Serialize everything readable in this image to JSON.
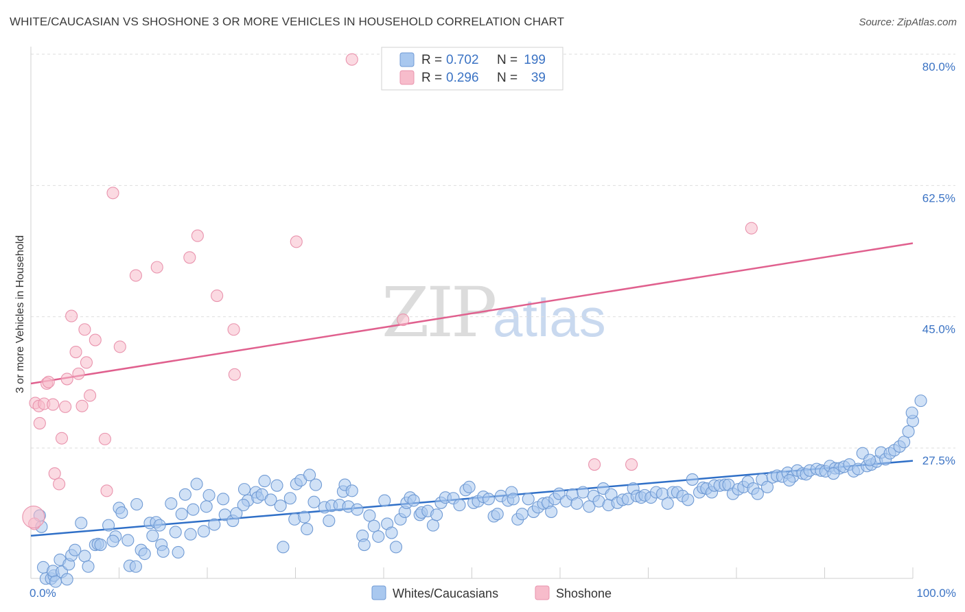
{
  "title": "WHITE/CAUCASIAN VS SHOSHONE 3 OR MORE VEHICLES IN HOUSEHOLD CORRELATION CHART",
  "source": "Source: ZipAtlas.com",
  "watermark": {
    "zip": "ZIP",
    "atlas": "atlas"
  },
  "legend": {
    "r_label": "R =",
    "n_label": "N =",
    "rows": [
      {
        "name": "Whites/Caucasians",
        "r": "0.702",
        "n": "199",
        "color": "#a9c8ef"
      },
      {
        "name": "Shoshone",
        "r": "0.296",
        "n": "39",
        "color": "#f7bccb"
      }
    ]
  },
  "colors": {
    "blue_fill": "#a9c8ef",
    "blue_stroke": "#6f9ad4",
    "blue_line": "#2f6fc7",
    "pink_fill": "#f7bccb",
    "pink_stroke": "#e993ad",
    "pink_line": "#e0608e",
    "tick_text": "#3b73c4"
  },
  "chart_data": {
    "type": "scatter",
    "title": "WHITE/CAUCASIAN VS SHOSHONE 3 OR MORE VEHICLES IN HOUSEHOLD CORRELATION CHART",
    "xlabel": "",
    "ylabel": "3 or more Vehicles in Household",
    "xlim": [
      0,
      100
    ],
    "ylim": [
      10,
      83
    ],
    "x_tick_labels": [
      {
        "value": 0,
        "label": "0.0%"
      },
      {
        "value": 100,
        "label": "100.0%"
      }
    ],
    "y_tick_labels": [
      {
        "value": 27.5,
        "label": "27.5%"
      },
      {
        "value": 45.0,
        "label": "45.0%"
      },
      {
        "value": 62.5,
        "label": "62.5%"
      },
      {
        "value": 80.0,
        "label": "80.0%"
      }
    ],
    "grid": true,
    "series": [
      {
        "name": "Whites/Caucasians",
        "trend": {
          "x": [
            0,
            100
          ],
          "y": [
            15.8,
            25.8
          ]
        },
        "points": [
          [
            1.0,
            18.5
          ],
          [
            1.2,
            17.0
          ],
          [
            1.4,
            11.6
          ],
          [
            1.7,
            10.1
          ],
          [
            2.3,
            10.1
          ],
          [
            2.6,
            10.5
          ],
          [
            2.5,
            11.1
          ],
          [
            2.8,
            9.7
          ],
          [
            3.5,
            11.0
          ],
          [
            3.3,
            12.6
          ],
          [
            4.1,
            10.0
          ],
          [
            4.3,
            12.0
          ],
          [
            4.6,
            13.2
          ],
          [
            5.0,
            13.9
          ],
          [
            5.7,
            17.5
          ],
          [
            6.1,
            13.1
          ],
          [
            6.5,
            11.7
          ],
          [
            7.3,
            14.6
          ],
          [
            7.6,
            14.7
          ],
          [
            7.9,
            14.6
          ],
          [
            8.8,
            17.2
          ],
          [
            9.6,
            15.7
          ],
          [
            9.3,
            15.1
          ],
          [
            10.0,
            19.5
          ],
          [
            10.3,
            18.9
          ],
          [
            11.0,
            15.2
          ],
          [
            11.2,
            11.8
          ],
          [
            11.9,
            11.7
          ],
          [
            12.0,
            20.0
          ],
          [
            12.5,
            13.9
          ],
          [
            12.9,
            13.4
          ],
          [
            13.5,
            17.5
          ],
          [
            13.8,
            15.8
          ],
          [
            14.2,
            17.6
          ],
          [
            14.6,
            17.2
          ],
          [
            14.8,
            14.6
          ],
          [
            15.0,
            13.7
          ],
          [
            15.9,
            20.1
          ],
          [
            16.4,
            16.3
          ],
          [
            16.7,
            13.6
          ],
          [
            17.1,
            18.7
          ],
          [
            17.5,
            21.3
          ],
          [
            18.1,
            16.0
          ],
          [
            18.4,
            19.3
          ],
          [
            18.8,
            22.7
          ],
          [
            19.6,
            16.4
          ],
          [
            19.9,
            19.7
          ],
          [
            20.2,
            21.2
          ],
          [
            20.8,
            17.3
          ],
          [
            21.8,
            20.7
          ],
          [
            22.0,
            18.6
          ],
          [
            22.9,
            17.8
          ],
          [
            23.3,
            18.8
          ],
          [
            24.2,
            22.0
          ],
          [
            24.6,
            20.5
          ],
          [
            24.1,
            19.9
          ],
          [
            25.5,
            21.6
          ],
          [
            25.7,
            20.9
          ],
          [
            26.2,
            21.3
          ],
          [
            26.5,
            23.1
          ],
          [
            27.2,
            20.6
          ],
          [
            27.9,
            22.5
          ],
          [
            28.3,
            19.8
          ],
          [
            28.6,
            14.3
          ],
          [
            29.4,
            20.8
          ],
          [
            29.9,
            18.0
          ],
          [
            30.1,
            22.7
          ],
          [
            30.6,
            23.2
          ],
          [
            31.0,
            18.3
          ],
          [
            31.3,
            16.7
          ],
          [
            31.6,
            23.9
          ],
          [
            32.1,
            20.3
          ],
          [
            32.3,
            22.6
          ],
          [
            33.3,
            19.6
          ],
          [
            33.8,
            17.8
          ],
          [
            34.1,
            19.8
          ],
          [
            35.0,
            19.9
          ],
          [
            35.4,
            21.7
          ],
          [
            35.6,
            22.6
          ],
          [
            36.0,
            19.7
          ],
          [
            36.4,
            21.8
          ],
          [
            37.0,
            19.3
          ],
          [
            37.6,
            15.8
          ],
          [
            37.8,
            14.6
          ],
          [
            38.4,
            18.5
          ],
          [
            38.9,
            17.1
          ],
          [
            39.4,
            15.7
          ],
          [
            40.1,
            20.5
          ],
          [
            40.4,
            17.4
          ],
          [
            40.9,
            16.2
          ],
          [
            41.4,
            14.3
          ],
          [
            41.9,
            18.0
          ],
          [
            42.4,
            19.0
          ],
          [
            42.6,
            20.2
          ],
          [
            43.0,
            20.9
          ],
          [
            43.4,
            20.5
          ],
          [
            44.1,
            18.6
          ],
          [
            44.3,
            18.9
          ],
          [
            45.0,
            19.1
          ],
          [
            45.6,
            17.2
          ],
          [
            46.0,
            18.6
          ],
          [
            46.5,
            20.2
          ],
          [
            47.0,
            20.9
          ],
          [
            47.9,
            20.8
          ],
          [
            48.6,
            19.9
          ],
          [
            49.3,
            21.9
          ],
          [
            49.7,
            22.3
          ],
          [
            50.2,
            20.2
          ],
          [
            50.7,
            20.4
          ],
          [
            51.3,
            21.0
          ],
          [
            51.9,
            20.7
          ],
          [
            52.5,
            18.4
          ],
          [
            52.9,
            18.7
          ],
          [
            53.3,
            21.1
          ],
          [
            54.1,
            20.5
          ],
          [
            54.5,
            21.6
          ],
          [
            54.7,
            20.7
          ],
          [
            55.2,
            18.0
          ],
          [
            55.7,
            18.7
          ],
          [
            56.4,
            20.7
          ],
          [
            57.0,
            19.0
          ],
          [
            57.5,
            19.6
          ],
          [
            58.1,
            20.1
          ],
          [
            58.6,
            20.2
          ],
          [
            59.0,
            19.0
          ],
          [
            59.4,
            20.7
          ],
          [
            59.9,
            21.4
          ],
          [
            60.7,
            20.4
          ],
          [
            61.4,
            21.3
          ],
          [
            61.9,
            20.1
          ],
          [
            62.6,
            21.6
          ],
          [
            63.3,
            19.7
          ],
          [
            63.8,
            21.1
          ],
          [
            64.4,
            20.4
          ],
          [
            64.9,
            22.1
          ],
          [
            65.5,
            19.9
          ],
          [
            65.8,
            21.3
          ],
          [
            66.5,
            20.2
          ],
          [
            67.1,
            20.6
          ],
          [
            67.7,
            20.7
          ],
          [
            68.3,
            22.1
          ],
          [
            68.7,
            21.1
          ],
          [
            69.2,
            20.9
          ],
          [
            69.6,
            21.2
          ],
          [
            70.3,
            20.9
          ],
          [
            70.9,
            21.6
          ],
          [
            71.6,
            21.4
          ],
          [
            72.2,
            20.1
          ],
          [
            72.8,
            21.6
          ],
          [
            73.3,
            21.6
          ],
          [
            73.9,
            21.1
          ],
          [
            74.5,
            20.6
          ],
          [
            75.0,
            23.3
          ],
          [
            75.8,
            21.6
          ],
          [
            76.2,
            22.2
          ],
          [
            76.6,
            22.1
          ],
          [
            77.2,
            21.6
          ],
          [
            77.5,
            22.5
          ],
          [
            78.1,
            22.5
          ],
          [
            78.7,
            22.6
          ],
          [
            79.1,
            22.6
          ],
          [
            79.6,
            21.4
          ],
          [
            80.2,
            22.0
          ],
          [
            80.8,
            22.3
          ],
          [
            81.3,
            23.0
          ],
          [
            81.9,
            22.1
          ],
          [
            82.4,
            21.4
          ],
          [
            82.9,
            23.3
          ],
          [
            83.5,
            22.3
          ],
          [
            84.1,
            23.6
          ],
          [
            84.6,
            23.8
          ],
          [
            85.2,
            23.7
          ],
          [
            85.8,
            24.2
          ],
          [
            86.4,
            23.7
          ],
          [
            86.9,
            24.5
          ],
          [
            87.5,
            24.1
          ],
          [
            87.9,
            24.0
          ],
          [
            88.3,
            24.5
          ],
          [
            89.1,
            24.7
          ],
          [
            89.6,
            24.5
          ],
          [
            90.1,
            24.4
          ],
          [
            90.6,
            25.1
          ],
          [
            91.2,
            24.8
          ],
          [
            91.7,
            24.8
          ],
          [
            92.2,
            25.0
          ],
          [
            92.8,
            25.3
          ],
          [
            93.3,
            24.4
          ],
          [
            93.8,
            24.7
          ],
          [
            94.3,
            26.8
          ],
          [
            94.8,
            25.1
          ],
          [
            95.3,
            25.3
          ],
          [
            95.9,
            25.7
          ],
          [
            96.4,
            26.9
          ],
          [
            96.9,
            26.0
          ],
          [
            97.4,
            26.8
          ],
          [
            97.9,
            27.2
          ],
          [
            98.5,
            27.7
          ],
          [
            99.0,
            28.3
          ],
          [
            99.5,
            29.7
          ],
          [
            100.0,
            31.1
          ],
          [
            100.9,
            33.8
          ],
          [
            99.9,
            32.2
          ],
          [
            95.1,
            25.9
          ],
          [
            91.0,
            24.1
          ],
          [
            86.0,
            23.2
          ]
        ]
      },
      {
        "name": "Shoshone",
        "trend": {
          "x": [
            0,
            100
          ],
          "y": [
            36.1,
            54.8
          ]
        },
        "points": [
          [
            0.4,
            17.4
          ],
          [
            0.5,
            33.5
          ],
          [
            0.9,
            33.1
          ],
          [
            1.0,
            30.8
          ],
          [
            1.5,
            33.4
          ],
          [
            1.8,
            36.1
          ],
          [
            2.0,
            36.3
          ],
          [
            2.5,
            33.3
          ],
          [
            2.7,
            24.1
          ],
          [
            3.2,
            22.7
          ],
          [
            3.5,
            28.8
          ],
          [
            3.9,
            33.0
          ],
          [
            4.1,
            36.7
          ],
          [
            4.6,
            45.1
          ],
          [
            5.1,
            40.3
          ],
          [
            5.4,
            37.4
          ],
          [
            5.8,
            33.1
          ],
          [
            6.1,
            43.3
          ],
          [
            6.3,
            38.9
          ],
          [
            6.7,
            34.5
          ],
          [
            7.3,
            41.9
          ],
          [
            8.4,
            28.7
          ],
          [
            8.6,
            21.8
          ],
          [
            9.3,
            61.5
          ],
          [
            10.1,
            41.0
          ],
          [
            11.9,
            50.5
          ],
          [
            14.3,
            51.6
          ],
          [
            18.0,
            52.9
          ],
          [
            18.9,
            55.8
          ],
          [
            21.1,
            47.8
          ],
          [
            23.0,
            43.3
          ],
          [
            23.1,
            37.3
          ],
          [
            30.1,
            55.0
          ],
          [
            36.4,
            79.3
          ],
          [
            42.2,
            44.6
          ],
          [
            63.9,
            25.3
          ],
          [
            68.1,
            25.3
          ],
          [
            81.7,
            56.8
          ],
          [
            0.3,
            18.3
          ]
        ]
      }
    ]
  }
}
